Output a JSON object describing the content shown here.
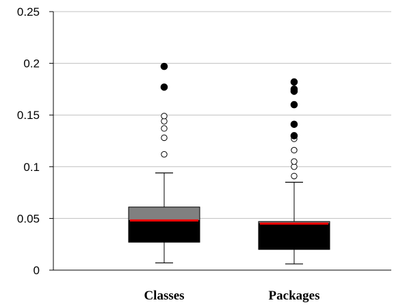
{
  "chart_data": {
    "type": "boxplot",
    "title": "",
    "xlabel": "",
    "ylabel": "",
    "ylim": [
      0,
      0.25
    ],
    "yticks": [
      0,
      0.05,
      0.1,
      0.15,
      0.2,
      0.25
    ],
    "ytick_labels": [
      "0",
      "0.05",
      "0.1",
      "0.15",
      "0.2",
      "0.25"
    ],
    "grid": "horizontal",
    "categories": [
      "Classes",
      "Packages"
    ],
    "colors": {
      "lower_box": "#000000",
      "upper_box": "#808080",
      "median": "#ff0000",
      "grid": "#c0c0c0"
    },
    "boxes": [
      {
        "name": "Classes",
        "whisker_low": 0.007,
        "q1": 0.027,
        "median": 0.048,
        "q3": 0.061,
        "whisker_high": 0.094,
        "outliers_mild": [
          0.112,
          0.128,
          0.137,
          0.144,
          0.149
        ],
        "outliers_extreme": [
          0.177,
          0.197
        ]
      },
      {
        "name": "Packages",
        "whisker_low": 0.006,
        "q1": 0.02,
        "median": 0.045,
        "q3": 0.047,
        "whisker_high": 0.085,
        "outliers_mild": [
          0.091,
          0.1,
          0.105,
          0.116,
          0.127
        ],
        "outliers_extreme": [
          0.13,
          0.141,
          0.16,
          0.173,
          0.175,
          0.182
        ]
      }
    ]
  }
}
